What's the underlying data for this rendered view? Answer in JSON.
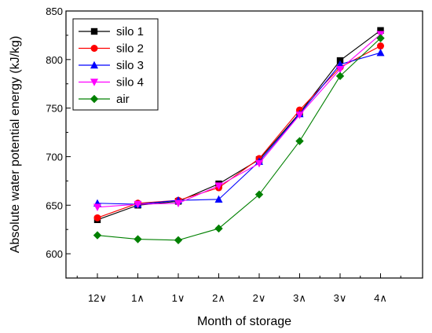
{
  "chart_data": {
    "type": "line",
    "xlabel": "Month of storage",
    "ylabel": "Absolute water potential energy (kJ/kg)",
    "categories": [
      "12∨",
      "1∧",
      "1∨",
      "2∧",
      "2∨",
      "3∧",
      "3∨",
      "4∧"
    ],
    "ylim": [
      575,
      850
    ],
    "yticks": [
      600,
      650,
      700,
      750,
      800,
      850
    ],
    "grid": false,
    "legend": "top-left",
    "series": [
      {
        "name": "silo 1",
        "color": "#000000",
        "marker": "square",
        "values": [
          635,
          650,
          654,
          672,
          697,
          745,
          799,
          830
        ]
      },
      {
        "name": "silo 2",
        "color": "#ff0000",
        "marker": "circle",
        "values": [
          637,
          652,
          655,
          668,
          698,
          748,
          792,
          814
        ]
      },
      {
        "name": "silo 3",
        "color": "#0000ff",
        "marker": "triangle-up",
        "values": [
          652,
          651,
          655,
          656,
          695,
          744,
          795,
          807
        ]
      },
      {
        "name": "silo 4",
        "color": "#ff00ff",
        "marker": "triangle-down",
        "values": [
          648,
          651,
          652,
          670,
          693,
          743,
          790,
          826
        ]
      },
      {
        "name": "air",
        "color": "#008000",
        "marker": "diamond",
        "values": [
          619,
          615,
          614,
          626,
          661,
          716,
          783,
          822
        ]
      }
    ]
  }
}
